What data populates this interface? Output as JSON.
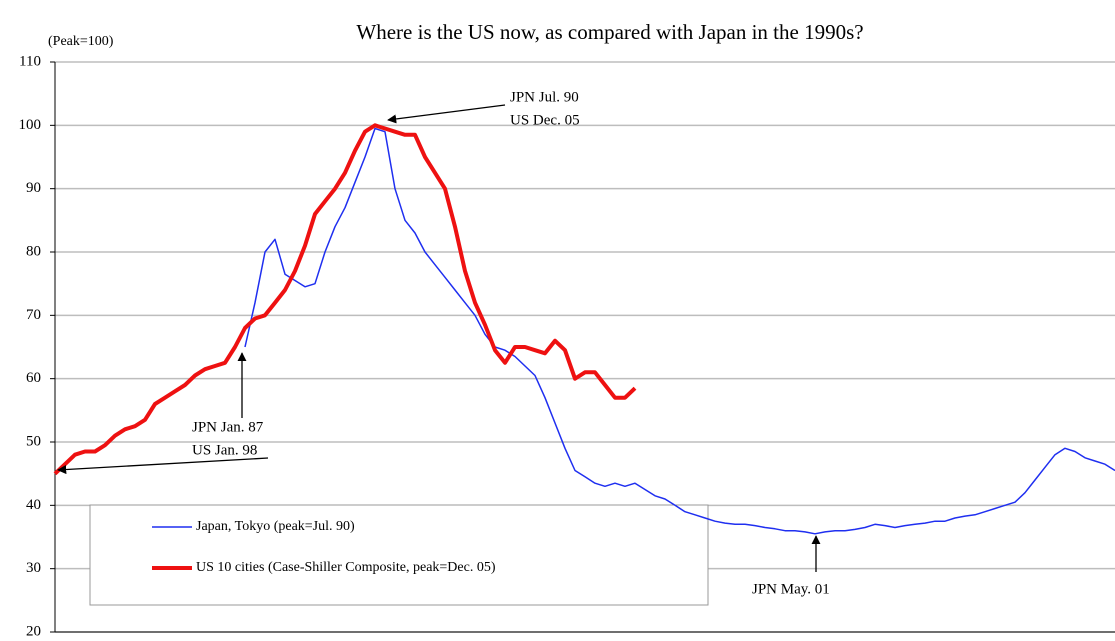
{
  "chart_data": {
    "type": "line",
    "title": "Where is the US now, as compared with Japan in the 1990s?",
    "y_label": "(Peak=100)",
    "ylim": [
      20,
      110
    ],
    "yticks": [
      20,
      30,
      40,
      50,
      60,
      70,
      80,
      90,
      100,
      110
    ],
    "grid": true,
    "series": [
      {
        "name": "Japan, Tokyo (peak=Jul. 90)",
        "color": "#1f2ff0",
        "width": 1.5,
        "values": [
          null,
          null,
          null,
          null,
          null,
          null,
          null,
          null,
          null,
          null,
          null,
          null,
          null,
          null,
          null,
          null,
          null,
          null,
          null,
          65,
          72,
          80,
          82,
          76.5,
          75.5,
          74.5,
          75,
          80,
          84,
          87,
          91,
          95,
          99.5,
          99,
          90,
          85,
          83,
          80,
          78,
          76,
          74,
          72,
          70,
          67,
          65,
          64.5,
          63.5,
          62,
          60.5,
          57,
          53,
          49,
          45.5,
          44.5,
          43.5,
          43,
          43.5,
          43,
          43.5,
          42.5,
          41.5,
          41,
          40,
          39,
          38.5,
          38,
          37.5,
          37.2,
          37,
          37,
          36.8,
          36.5,
          36.3,
          36,
          36,
          35.8,
          35.5,
          35.8,
          36,
          36,
          36.2,
          36.5,
          37,
          36.8,
          36.5,
          36.8,
          37,
          37.2,
          37.5,
          37.5,
          38,
          38.3,
          38.5,
          39,
          39.5,
          40,
          40.5,
          42,
          44,
          46,
          48,
          49,
          48.5,
          47.5,
          47,
          46.5,
          45.5
        ]
      },
      {
        "name": "US 10 cities (Case-Shiller Composite, peak=Dec. 05)",
        "color": "#ee1111",
        "width": 4,
        "values": [
          45,
          46.5,
          48,
          48.5,
          48.5,
          49.5,
          51,
          52,
          52.5,
          53.5,
          56,
          57,
          58,
          59,
          60.5,
          61.5,
          62,
          62.5,
          65,
          68,
          69.5,
          70,
          72,
          74,
          77,
          81,
          86,
          88,
          90,
          92.5,
          96,
          99,
          100,
          99.5,
          99,
          98.5,
          98.5,
          95,
          92.5,
          90,
          84,
          77,
          72,
          68.5,
          64.5,
          62.5,
          65,
          65,
          64.5,
          64,
          66,
          64.5,
          60,
          61,
          61,
          59,
          57,
          57,
          58.5,
          null,
          null,
          null,
          null,
          null,
          null,
          null,
          null,
          null,
          null,
          null,
          null,
          null,
          null,
          null,
          null,
          null,
          null,
          null,
          null,
          null,
          null,
          null,
          null,
          null,
          null,
          null,
          null,
          null,
          null,
          null,
          null,
          null,
          null,
          null,
          null,
          null,
          null,
          null,
          null,
          null,
          null,
          null,
          null,
          null,
          null,
          null,
          null
        ]
      }
    ],
    "annotations": [
      {
        "lines": [
          "JPN Jul. 90",
          "US Dec. 05"
        ]
      },
      {
        "lines": [
          "JPN Jan. 87",
          "US Jan. 98"
        ]
      },
      {
        "lines": [
          "JPN May. 01"
        ]
      }
    ]
  }
}
